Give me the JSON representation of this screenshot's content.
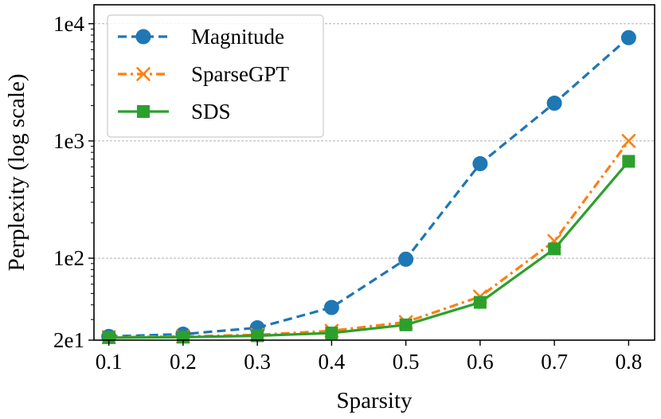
{
  "chart_data": {
    "type": "line",
    "title": "",
    "xlabel": "Sparsity",
    "ylabel": "Perplexity (log scale)",
    "yscale": "log",
    "x": [
      0.1,
      0.2,
      0.3,
      0.4,
      0.5,
      0.6,
      0.7,
      0.8
    ],
    "xticks": [
      "0.1",
      "0.2",
      "0.3",
      "0.4",
      "0.5",
      "0.6",
      "0.7",
      "0.8"
    ],
    "yticks": [
      {
        "value": 20,
        "label": "2e1"
      },
      {
        "value": 100,
        "label": "1e2"
      },
      {
        "value": 1000,
        "label": "1e3"
      },
      {
        "value": 10000,
        "label": "1e4"
      }
    ],
    "xlim": [
      0.08,
      0.835
    ],
    "ylim": [
      20,
      14500
    ],
    "grid": "horizontal-dashed",
    "legend_position": "top-left",
    "series": [
      {
        "name": "Magnitude",
        "color": "#1f77b4",
        "marker": "circle",
        "linestyle": "dashed",
        "values": [
          21.5,
          22.5,
          25.5,
          38,
          98,
          640,
          2100,
          7600
        ]
      },
      {
        "name": "SparseGPT",
        "color": "#ff7f0e",
        "marker": "x",
        "linestyle": "dashdot",
        "values": [
          21.2,
          21.5,
          22.2,
          24,
          28.5,
          47,
          140,
          1000
        ]
      },
      {
        "name": "SDS",
        "color": "#2ca02c",
        "marker": "square",
        "linestyle": "solid",
        "values": [
          21.0,
          21.2,
          21.8,
          23,
          27,
          42,
          120,
          670
        ]
      }
    ]
  }
}
